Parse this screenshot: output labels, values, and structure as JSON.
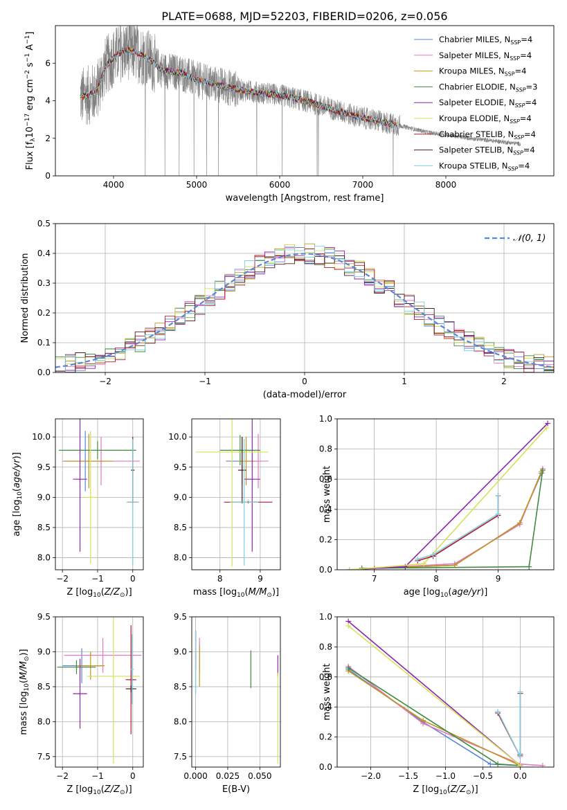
{
  "figure": {
    "title": "PLATE=0688, MJD=52203, FIBERID=0206, z=0.056"
  },
  "series_meta": [
    {
      "name": "Chabrier MILES",
      "nssp": "4",
      "color": "#5b86d6"
    },
    {
      "name": "Salpeter MILES",
      "nssp": "4",
      "color": "#e377c2"
    },
    {
      "name": "Kroupa MILES",
      "nssp": "4",
      "color": "#c29419"
    },
    {
      "name": "Chabrier ELODIE",
      "nssp": "3",
      "color": "#3f8a3f"
    },
    {
      "name": "Salpeter ELODIE",
      "nssp": "4",
      "color": "#8e24aa"
    },
    {
      "name": "Kroupa ELODIE",
      "nssp": "4",
      "color": "#d4e157"
    },
    {
      "name": "Chabrier STELIB",
      "nssp": "4",
      "color": "#b2182b"
    },
    {
      "name": "Salpeter STELIB",
      "nssp": "4",
      "color": "#4d1a1a"
    },
    {
      "name": "Kroupa STELIB",
      "nssp": "4",
      "color": "#7ecfe0"
    }
  ],
  "chart_data": [
    {
      "id": "spectrum",
      "type": "line",
      "xlabel": "wavelength [Angstrom, rest frame]",
      "ylabel": "Flux [f_λ 10^-17 erg cm^-2 s^-1 A^-1]",
      "xlim": [
        3300,
        9300
      ],
      "ylim": [
        0,
        8
      ],
      "xticks": [
        4000,
        5000,
        6000,
        7000,
        8000
      ],
      "yticks": [
        0,
        2,
        4,
        6
      ],
      "grid": false,
      "legend": "top-right",
      "data_color": "#808080",
      "data_x_range": [
        3600,
        8900
      ],
      "model_x_range": [
        3600,
        7420
      ],
      "continuum": [
        [
          3600,
          4.2
        ],
        [
          3700,
          4.3
        ],
        [
          3800,
          4.5
        ],
        [
          3900,
          5.8
        ],
        [
          4000,
          6.3
        ],
        [
          4100,
          6.6
        ],
        [
          4200,
          6.7
        ],
        [
          4400,
          6.3
        ],
        [
          4600,
          5.6
        ],
        [
          4800,
          5.5
        ],
        [
          5000,
          5.1
        ],
        [
          5200,
          4.9
        ],
        [
          5500,
          4.6
        ],
        [
          5800,
          4.4
        ],
        [
          6000,
          4.3
        ],
        [
          6300,
          4.0
        ],
        [
          6600,
          3.6
        ],
        [
          6900,
          3.2
        ],
        [
          7200,
          2.9
        ],
        [
          7420,
          2.7
        ],
        [
          7800,
          2.3
        ],
        [
          8300,
          2.0
        ],
        [
          8900,
          1.7
        ]
      ]
    },
    {
      "id": "residuals",
      "type": "histogram",
      "xlabel": "(data-model)/error",
      "ylabel": "Normed distribution",
      "xlim": [
        -2.5,
        2.5
      ],
      "ylim": [
        0,
        0.5
      ],
      "xticks": [
        -2,
        -1,
        0,
        1,
        2
      ],
      "yticks": [
        0.0,
        0.1,
        0.2,
        0.3,
        0.4,
        0.5
      ],
      "grid": true,
      "legend": "top-right",
      "reference_curve": {
        "label": "N(0,1)",
        "mean": 0,
        "sigma": 1,
        "color": "#5b86d6"
      },
      "bin_width": 0.1
    },
    {
      "id": "age_vs_Z",
      "type": "scatter",
      "xlabel": "Z [log10(Z/Z⊙)]",
      "ylabel": "age [log10(age/yr)]",
      "xlim": [
        -2.2,
        0.3
      ],
      "ylim": [
        7.8,
        10.3
      ],
      "xticks": [
        -2,
        -1,
        0
      ],
      "yticks": [
        8.0,
        8.5,
        9.0,
        9.5,
        10.0
      ],
      "grid": true,
      "points": [
        {
          "s": 0,
          "x": -1.35,
          "y": 9.6,
          "xerr": 0.6,
          "yerr": 0.5
        },
        {
          "s": 1,
          "x": -0.9,
          "y": 9.6,
          "xerr": 1.1,
          "yerr": 0.4
        },
        {
          "s": 2,
          "x": -1.25,
          "y": 9.6,
          "xerr": 0.7,
          "yerr": 0.45
        },
        {
          "s": 3,
          "x": -1.0,
          "y": 9.78,
          "xerr": 1.1,
          "yerr": 0.15
        },
        {
          "s": 4,
          "x": -1.5,
          "y": 9.3,
          "xerr": 0.2,
          "yerr": 1.2
        },
        {
          "s": 5,
          "x": -1.2,
          "y": 9.0,
          "xerr": 0.2,
          "yerr": 1.1
        },
        {
          "s": 6,
          "x": 0.0,
          "y": 8.92,
          "xerr": 0.15,
          "yerr": 0.02
        },
        {
          "s": 7,
          "x": 0.0,
          "y": 9.45,
          "xerr": 0.05,
          "yerr": 0.55
        },
        {
          "s": 8,
          "x": 0.0,
          "y": 8.92,
          "xerr": 0.18,
          "yerr": 1.05
        }
      ]
    },
    {
      "id": "age_vs_mass",
      "type": "scatter",
      "xlabel": "mass [log10(M/M⊙)]",
      "ylabel": "",
      "xlim": [
        7.3,
        9.5
      ],
      "ylim": [
        7.8,
        10.3
      ],
      "xticks": [
        8,
        9
      ],
      "yticks": [
        8.0,
        8.5,
        9.0,
        9.5,
        10.0
      ],
      "grid": true,
      "points": [
        {
          "s": 0,
          "x": 8.55,
          "y": 9.6,
          "xerr": 0.4,
          "yerr": 0.4
        },
        {
          "s": 1,
          "x": 8.95,
          "y": 9.6,
          "xerr": 0.25,
          "yerr": 0.45
        },
        {
          "s": 2,
          "x": 8.65,
          "y": 9.6,
          "xerr": 0.2,
          "yerr": 0.4
        },
        {
          "s": 3,
          "x": 8.5,
          "y": 9.78,
          "xerr": 0.5,
          "yerr": 0.25
        },
        {
          "s": 4,
          "x": 8.8,
          "y": 9.3,
          "xerr": 0.2,
          "yerr": 1.2
        },
        {
          "s": 5,
          "x": 8.3,
          "y": 9.75,
          "xerr": 0.9,
          "yerr": 1.9
        },
        {
          "s": 6,
          "x": 8.7,
          "y": 8.92,
          "xerr": 0.6,
          "yerr": 0.02
        },
        {
          "s": 7,
          "x": 8.55,
          "y": 9.45,
          "xerr": 0.1,
          "yerr": 0.55
        },
        {
          "s": 8,
          "x": 8.6,
          "y": 8.92,
          "xerr": 0.35,
          "yerr": 1.05
        }
      ]
    },
    {
      "id": "weight_vs_age",
      "type": "line",
      "xlabel": "age [log10(age/yr)]",
      "ylabel": "mass weight",
      "xlim": [
        6.4,
        9.9
      ],
      "ylim": [
        0,
        1
      ],
      "xticks": [
        7,
        8,
        9
      ],
      "yticks": [
        0.0,
        0.2,
        0.4,
        0.6,
        0.8,
        1.0
      ],
      "grid": true,
      "series": [
        {
          "s": 0,
          "x": [
            7.0,
            8.3,
            9.35,
            9.7
          ],
          "y": [
            0.01,
            0.03,
            0.31,
            0.64
          ]
        },
        {
          "s": 1,
          "x": [
            7.0,
            8.3,
            9.35,
            9.72
          ],
          "y": [
            0.01,
            0.04,
            0.3,
            0.67
          ]
        },
        {
          "s": 2,
          "x": [
            7.0,
            8.3,
            9.35,
            9.7
          ],
          "y": [
            0.01,
            0.03,
            0.31,
            0.65
          ]
        },
        {
          "s": 3,
          "x": [
            6.8,
            9.5,
            9.72
          ],
          "y": [
            0.01,
            0.02,
            0.66
          ]
        },
        {
          "s": 4,
          "x": [
            6.6,
            7.5,
            9.8
          ],
          "y": [
            0.0,
            0.02,
            0.97
          ]
        },
        {
          "s": 5,
          "x": [
            6.6,
            7.8,
            9.78
          ],
          "y": [
            0.0,
            0.04,
            0.94
          ]
        },
        {
          "s": 6,
          "x": [
            7.7,
            7.95,
            9.0,
            9.0
          ],
          "y": [
            0.06,
            0.09,
            0.36,
            0.49
          ]
        },
        {
          "s": 8,
          "x": [
            7.7,
            7.95,
            9.0,
            9.0
          ],
          "y": [
            0.07,
            0.1,
            0.37,
            0.49
          ]
        }
      ]
    },
    {
      "id": "mass_vs_Z",
      "type": "scatter",
      "xlabel": "Z [log10(Z/Z⊙)]",
      "ylabel": "mass [log10(M/M⊙)]",
      "xlim": [
        -2.2,
        0.3
      ],
      "ylim": [
        7.35,
        9.5
      ],
      "xticks": [
        -2,
        -1,
        0
      ],
      "yticks": [
        7.5,
        8.0,
        8.5,
        9.0,
        9.5
      ],
      "grid": true,
      "points": [
        {
          "s": 0,
          "x": -1.45,
          "y": 8.8,
          "xerr": 0.55,
          "yerr": 0.25
        },
        {
          "s": 1,
          "x": -0.85,
          "y": 8.95,
          "xerr": 1.1,
          "yerr": 0.25
        },
        {
          "s": 2,
          "x": -1.2,
          "y": 8.8,
          "xerr": 0.4,
          "yerr": 0.2
        },
        {
          "s": 3,
          "x": -1.6,
          "y": 8.78,
          "xerr": 0.55,
          "yerr": 0.1
        },
        {
          "s": 4,
          "x": -1.5,
          "y": 8.4,
          "xerr": 0.2,
          "yerr": 0.5
        },
        {
          "s": 5,
          "x": -0.55,
          "y": 8.65,
          "xerr": 0.75,
          "yerr": 1.25
        },
        {
          "s": 6,
          "x": -0.05,
          "y": 8.6,
          "xerr": 0.15,
          "yerr": 0.78
        },
        {
          "s": 7,
          "x": -0.05,
          "y": 8.47,
          "xerr": 0.15,
          "yerr": 0.05
        },
        {
          "s": 8,
          "x": -0.02,
          "y": 8.75,
          "xerr": 0.05,
          "yerr": 0.5
        }
      ]
    },
    {
      "id": "mass_vs_EBV",
      "type": "scatter",
      "xlabel": "E(B-V)",
      "ylabel": "",
      "xlim": [
        -0.003,
        0.066
      ],
      "ylim": [
        7.35,
        9.5
      ],
      "xticks": [
        0.0,
        0.025,
        0.05
      ],
      "yticks": [
        7.5,
        8.0,
        8.5,
        9.0,
        9.5
      ],
      "grid": true,
      "points": [
        {
          "s": 0,
          "x": 0.0,
          "y": 8.85,
          "yerr": 0.45
        },
        {
          "s": 1,
          "x": 0.003,
          "y": 8.95,
          "yerr": 0.25
        },
        {
          "s": 2,
          "x": 0.003,
          "y": 8.8,
          "yerr": 0.3
        },
        {
          "s": 3,
          "x": 0.043,
          "y": 8.75,
          "yerr": 0.27
        },
        {
          "s": 4,
          "x": 0.064,
          "y": 8.8,
          "yerr": 0.15
        },
        {
          "s": 5,
          "x": 0.064,
          "y": 8.05,
          "yerr": 0.65
        },
        {
          "s": 6,
          "x": 0.0,
          "y": 9.1,
          "yerr": 0.2
        },
        {
          "s": 7,
          "x": 0.0,
          "y": 8.85,
          "yerr": 0.1
        },
        {
          "s": 8,
          "x": 0.0,
          "y": 8.85,
          "yerr": 0.45
        }
      ]
    },
    {
      "id": "weight_vs_Z",
      "type": "line",
      "xlabel": "Z [log10(Z/Z⊙)]",
      "ylabel": "mass weight",
      "xlim": [
        -2.45,
        0.45
      ],
      "ylim": [
        0,
        1
      ],
      "xticks": [
        -2.0,
        -1.5,
        -1.0,
        -0.5,
        0.0
      ],
      "yticks": [
        0.0,
        0.2,
        0.4,
        0.6,
        0.8,
        1.0
      ],
      "grid": true,
      "series": [
        {
          "s": 0,
          "x": [
            -2.3,
            -1.3,
            -0.4,
            0.0
          ],
          "y": [
            0.65,
            0.3,
            0.02,
            0.01
          ]
        },
        {
          "s": 1,
          "x": [
            -2.3,
            -1.3,
            0.0,
            0.3
          ],
          "y": [
            0.67,
            0.29,
            0.02,
            0.01
          ]
        },
        {
          "s": 2,
          "x": [
            -2.3,
            -1.3,
            0.0
          ],
          "y": [
            0.64,
            0.31,
            0.01
          ]
        },
        {
          "s": 3,
          "x": [
            -2.3,
            -0.3,
            0.0
          ],
          "y": [
            0.66,
            0.02,
            0.01
          ]
        },
        {
          "s": 4,
          "x": [
            -2.3,
            0.0
          ],
          "y": [
            0.97,
            0.01
          ]
        },
        {
          "s": 5,
          "x": [
            -2.3,
            0.0
          ],
          "y": [
            0.94,
            0.01
          ]
        },
        {
          "s": 6,
          "x": [
            -0.3,
            0.0,
            0.0,
            0.0
          ],
          "y": [
            0.36,
            0.07,
            0.08,
            0.49
          ]
        },
        {
          "s": 8,
          "x": [
            -0.3,
            0.0,
            0.0,
            0.0
          ],
          "y": [
            0.37,
            0.07,
            0.09,
            0.5
          ]
        }
      ]
    }
  ]
}
